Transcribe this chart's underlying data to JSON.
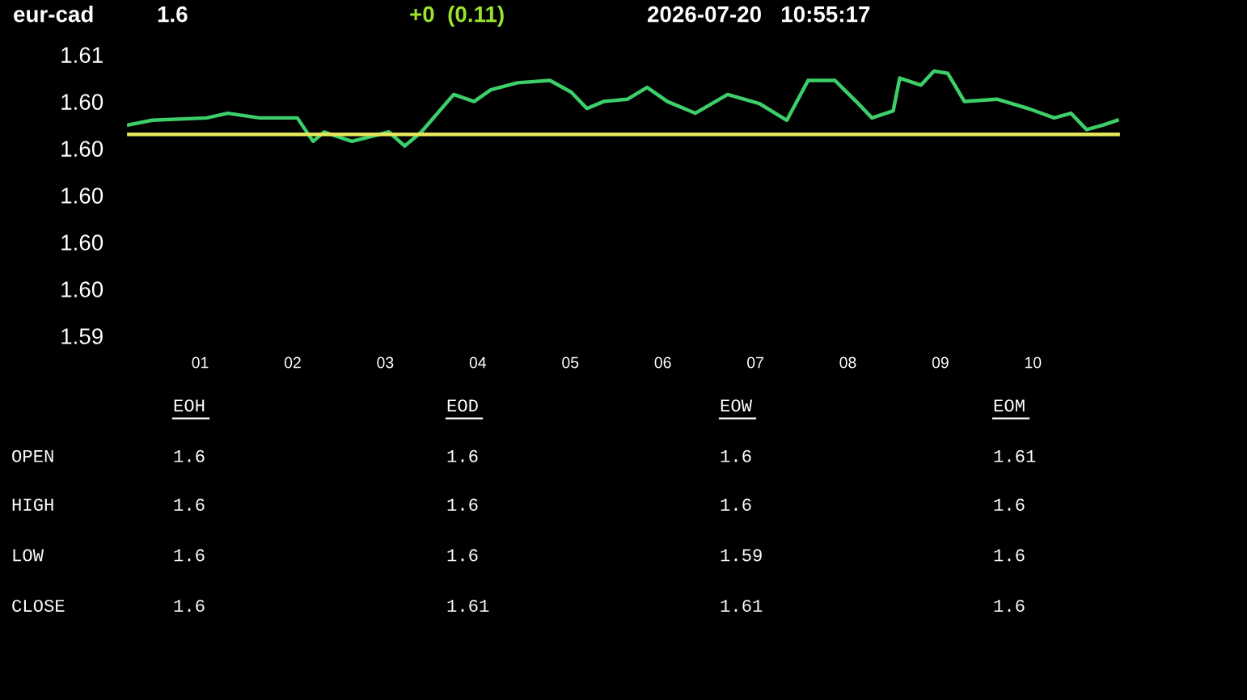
{
  "chart_data": [
    {
      "type": "line",
      "title": "eur-cad",
      "annotations": [
        "1.6",
        "+0  (0.11)",
        "2026-07-20   10:55:17"
      ],
      "x": [
        0.22,
        0.48,
        1.07,
        1.3,
        1.64,
        2.05,
        2.22,
        2.34,
        2.64,
        3.04,
        3.21,
        3.39,
        3.74,
        3.96,
        4.14,
        4.43,
        4.78,
        5.01,
        5.18,
        5.36,
        5.62,
        5.83,
        6.05,
        6.35,
        6.7,
        7.05,
        7.34,
        7.57,
        7.86,
        8.09,
        8.26,
        8.49,
        8.56,
        8.79,
        8.93,
        9.08,
        9.26,
        9.61,
        9.95,
        10.23,
        10.41,
        10.58,
        10.76,
        10.91
      ],
      "series": [
        {
          "color": "#3ccf6a",
          "values": [
            1.603,
            1.6032,
            1.6033,
            1.6035,
            1.6033,
            1.6033,
            1.6023,
            1.6027,
            1.6023,
            1.6027,
            1.6021,
            1.6027,
            1.6043,
            1.604,
            1.6045,
            1.6048,
            1.6049,
            1.6044,
            1.6037,
            1.604,
            1.6041,
            1.6046,
            1.604,
            1.6035,
            1.6043,
            1.6039,
            1.6032,
            1.6049,
            1.6049,
            1.604,
            1.6033,
            1.6036,
            1.605,
            1.6047,
            1.6053,
            1.6052,
            1.604,
            1.6041,
            1.6037,
            1.6033,
            1.6035,
            1.6028,
            1.603,
            1.6032
          ]
        }
      ],
      "ref_lines": [
        {
          "axis": "y",
          "value": 1.6026,
          "color": "#e6e65a"
        }
      ],
      "xlim": [
        0.2,
        10.95
      ],
      "xticks": [
        {
          "value": 1,
          "label": "01"
        },
        {
          "value": 2,
          "label": "02"
        },
        {
          "value": 3,
          "label": "03"
        },
        {
          "value": 4,
          "label": "04"
        },
        {
          "value": 5,
          "label": "05"
        },
        {
          "value": 6,
          "label": "06"
        },
        {
          "value": 7,
          "label": "07"
        },
        {
          "value": 8,
          "label": "08"
        },
        {
          "value": 9,
          "label": "09"
        },
        {
          "value": 10,
          "label": "10"
        }
      ],
      "ylim": [
        1.5935,
        1.6064
      ],
      "yticks": [
        {
          "value": 1.594,
          "label": "1.59"
        },
        {
          "value": 1.596,
          "label": "1.60"
        },
        {
          "value": 1.598,
          "label": "1.60"
        },
        {
          "value": 1.6,
          "label": "1.60"
        },
        {
          "value": 1.602,
          "label": "1.60"
        },
        {
          "value": 1.604,
          "label": "1.60"
        },
        {
          "value": 1.606,
          "label": "1.61"
        }
      ],
      "grid": false,
      "legend": false
    },
    {
      "type": "other",
      "categories": [
        "EOH",
        "EOD",
        "EOW",
        "EOM"
      ],
      "y_categories": [
        "OPEN",
        "HIGH",
        "LOW",
        "CLOSE"
      ],
      "cell_labels": [
        [
          "1.6",
          "1.6",
          "1.6",
          "1.61"
        ],
        [
          "1.6",
          "1.6",
          "1.6",
          "1.6"
        ],
        [
          "1.6",
          "1.6",
          "1.59",
          "1.6"
        ],
        [
          "1.6",
          "1.61",
          "1.61",
          "1.6"
        ]
      ]
    }
  ]
}
